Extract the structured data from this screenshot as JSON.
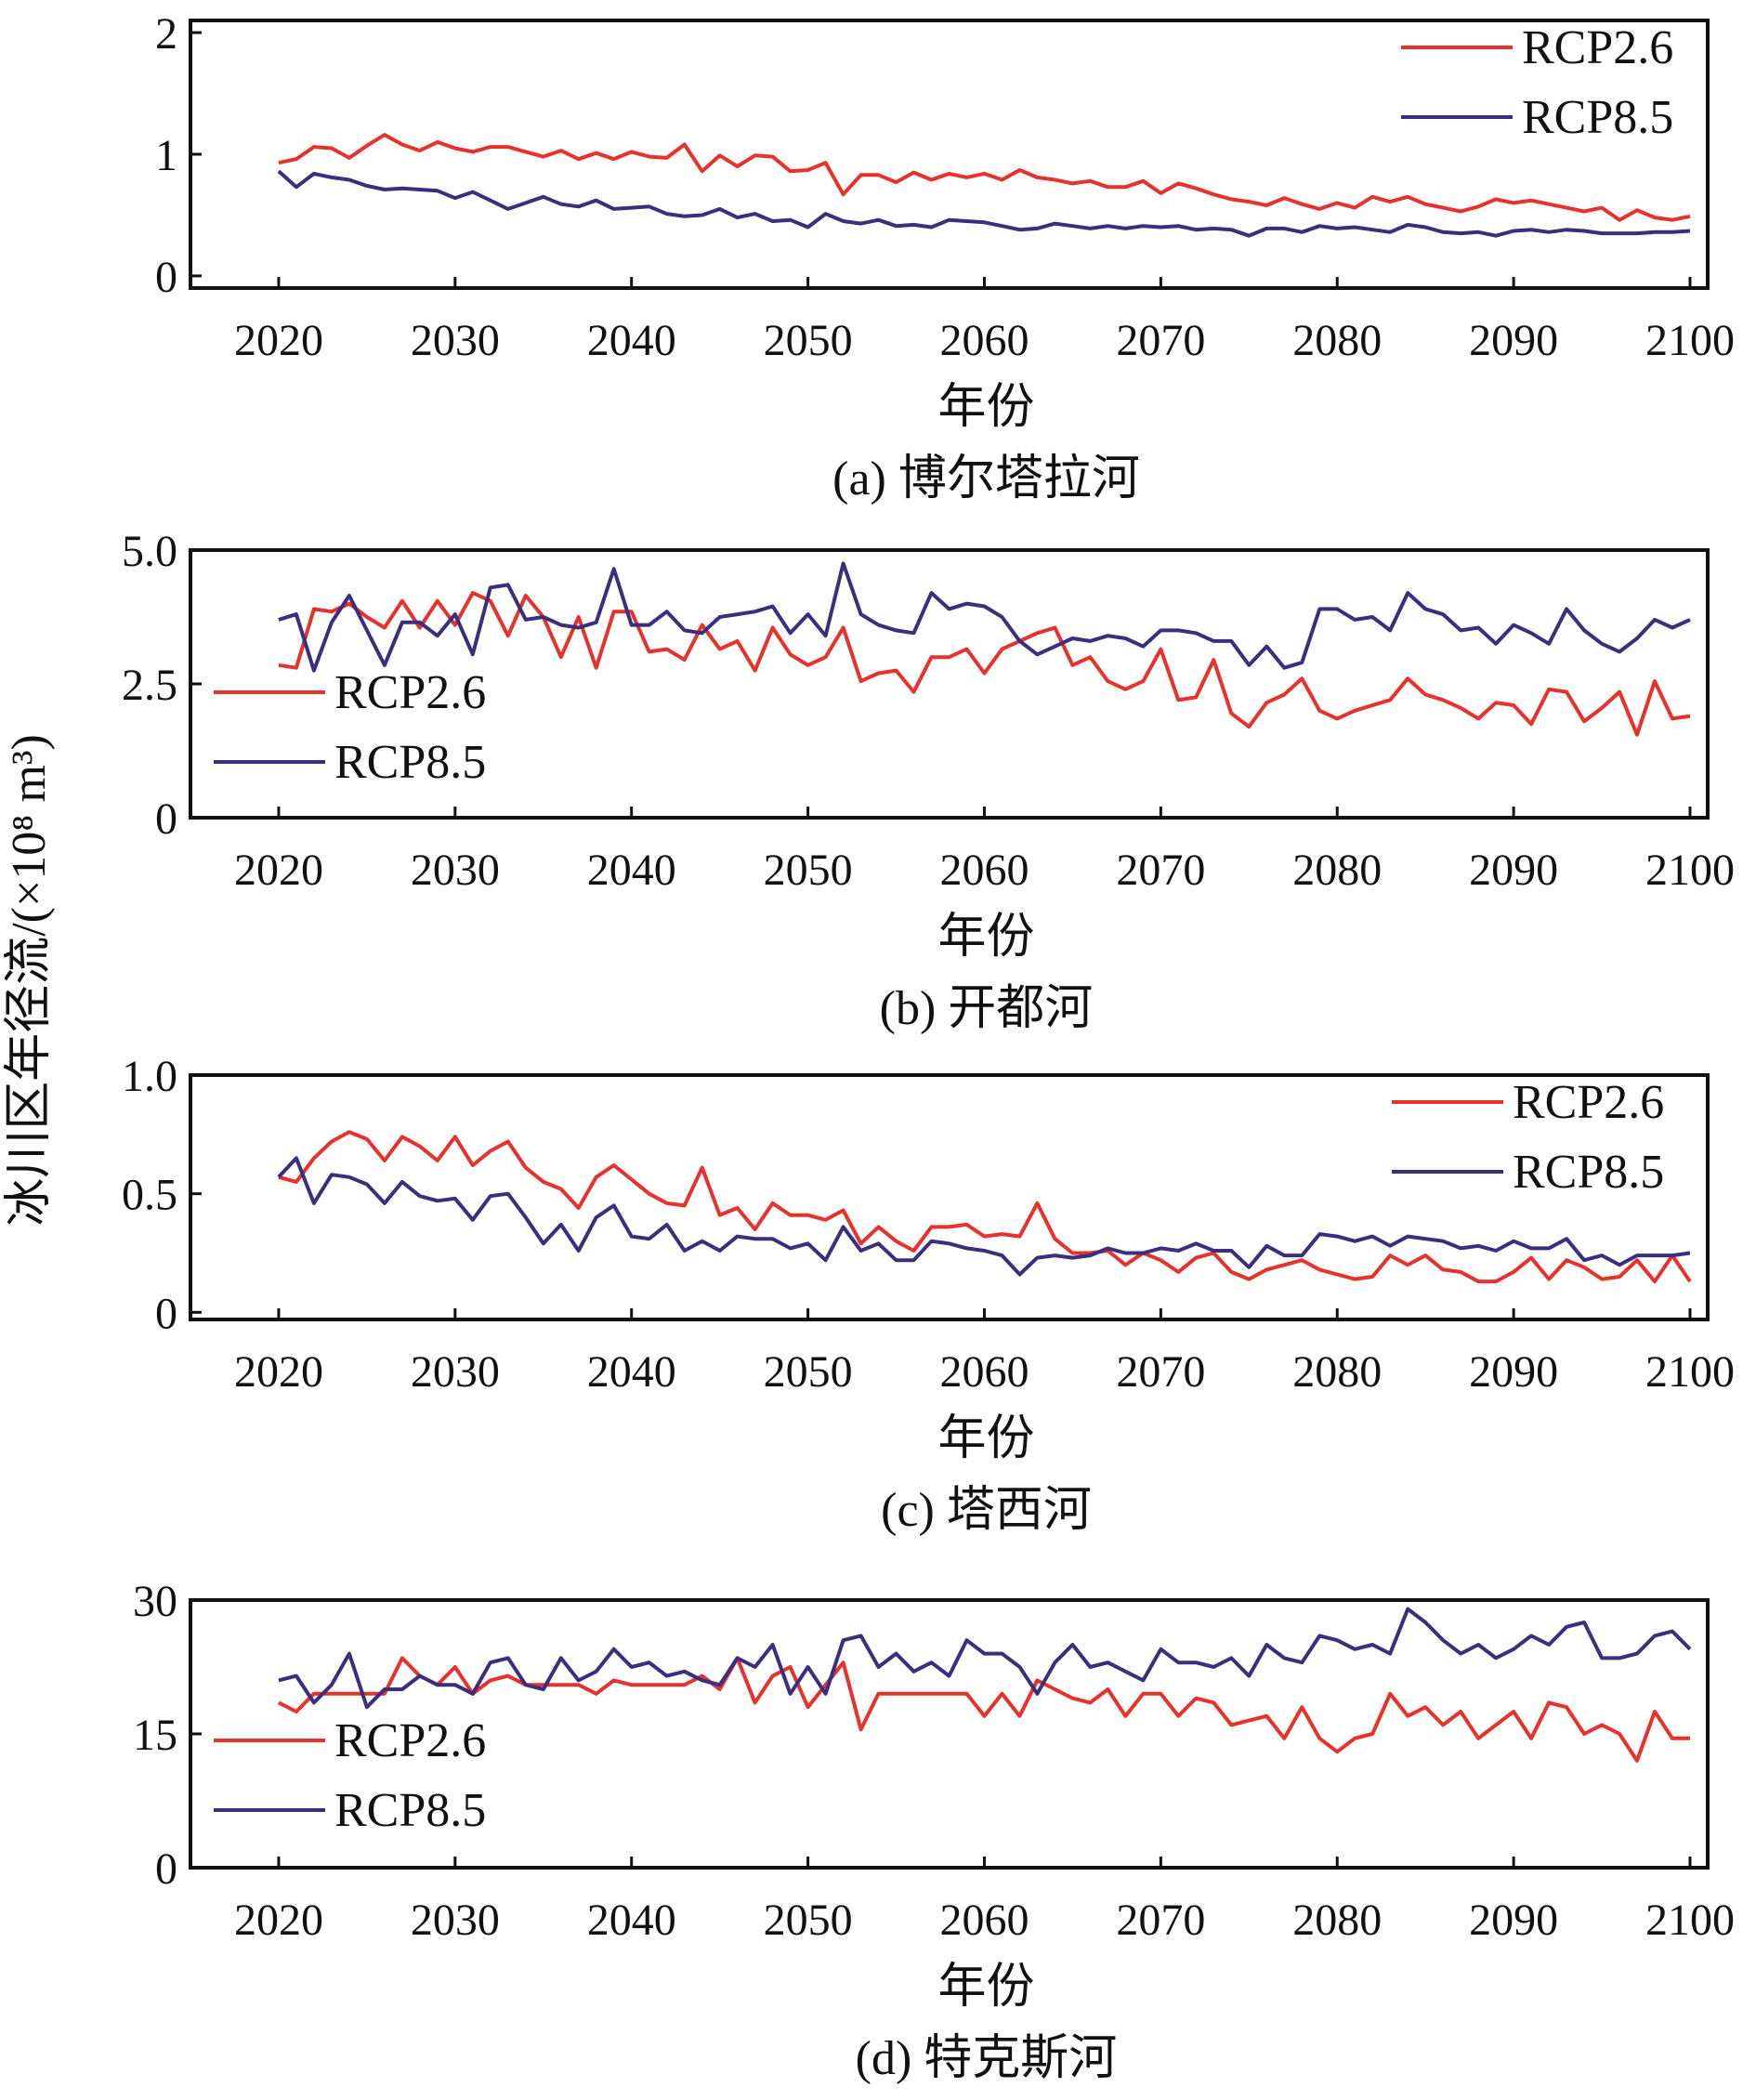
{
  "ylabel": "冰川区年径流/(×10⁸ m³)",
  "legend_names": [
    "RCP2.6",
    "RCP8.5"
  ],
  "colors": {
    "RCP2.6": "#e8312a",
    "RCP8.5": "#3a2f7e"
  },
  "chart_data": [
    {
      "type": "line",
      "title": "(a) 博尔塔拉河",
      "xlabel": "年份",
      "xlim": [
        2015,
        2101
      ],
      "ylim": [
        -0.1,
        2.1
      ],
      "xticks": [
        2020,
        2030,
        2040,
        2050,
        2060,
        2070,
        2080,
        2090,
        2100
      ],
      "yticks": [
        0,
        1,
        2
      ],
      "ytick_labels": [
        "0",
        "1",
        "2"
      ],
      "legend": "top-right",
      "x_start": 2020,
      "series": [
        {
          "name": "RCP2.6",
          "color": "#e8312a",
          "values": [
            0.93,
            0.96,
            1.06,
            1.05,
            0.97,
            1.07,
            1.16,
            1.08,
            1.03,
            1.1,
            1.05,
            1.02,
            1.06,
            1.06,
            1.02,
            0.98,
            1.03,
            0.96,
            1.01,
            0.96,
            1.02,
            0.98,
            0.97,
            1.08,
            0.86,
            0.99,
            0.9,
            0.99,
            0.98,
            0.86,
            0.87,
            0.93,
            0.67,
            0.83,
            0.83,
            0.77,
            0.85,
            0.79,
            0.84,
            0.81,
            0.84,
            0.79,
            0.87,
            0.81,
            0.79,
            0.76,
            0.78,
            0.73,
            0.73,
            0.78,
            0.68,
            0.76,
            0.72,
            0.67,
            0.63,
            0.61,
            0.58,
            0.64,
            0.59,
            0.55,
            0.6,
            0.56,
            0.65,
            0.61,
            0.65,
            0.59,
            0.56,
            0.53,
            0.57,
            0.63,
            0.6,
            0.62,
            0.59,
            0.56,
            0.53,
            0.56,
            0.46,
            0.54,
            0.48,
            0.46,
            0.49
          ]
        },
        {
          "name": "RCP8.5",
          "color": "#3a2f7e",
          "values": [
            0.86,
            0.73,
            0.84,
            0.81,
            0.79,
            0.74,
            0.71,
            0.72,
            0.71,
            0.7,
            0.64,
            0.69,
            0.62,
            0.55,
            0.6,
            0.65,
            0.59,
            0.57,
            0.62,
            0.55,
            0.56,
            0.57,
            0.51,
            0.49,
            0.5,
            0.55,
            0.48,
            0.51,
            0.45,
            0.46,
            0.4,
            0.51,
            0.45,
            0.43,
            0.46,
            0.41,
            0.42,
            0.4,
            0.46,
            0.45,
            0.44,
            0.41,
            0.38,
            0.39,
            0.43,
            0.41,
            0.39,
            0.41,
            0.39,
            0.41,
            0.4,
            0.41,
            0.38,
            0.39,
            0.38,
            0.33,
            0.39,
            0.39,
            0.36,
            0.41,
            0.39,
            0.4,
            0.38,
            0.36,
            0.42,
            0.4,
            0.36,
            0.35,
            0.36,
            0.33,
            0.37,
            0.38,
            0.36,
            0.38,
            0.37,
            0.35,
            0.35,
            0.35,
            0.36,
            0.36,
            0.37
          ]
        }
      ]
    },
    {
      "type": "line",
      "title": "(b) 开都河",
      "xlabel": "年份",
      "xlim": [
        2015,
        2101
      ],
      "ylim": [
        0,
        5.0
      ],
      "xticks": [
        2020,
        2030,
        2040,
        2050,
        2060,
        2070,
        2080,
        2090,
        2100
      ],
      "yticks": [
        0,
        2.5,
        5.0
      ],
      "ytick_labels": [
        "0",
        "2.5",
        "5.0"
      ],
      "legend": "bottom-left",
      "x_start": 2020,
      "series": [
        {
          "name": "RCP2.6",
          "color": "#e8312a",
          "values": [
            2.85,
            2.8,
            3.9,
            3.85,
            4.0,
            3.75,
            3.55,
            4.05,
            3.55,
            4.05,
            3.6,
            4.2,
            4.05,
            3.4,
            4.15,
            3.75,
            3.0,
            3.75,
            2.8,
            3.85,
            3.85,
            3.1,
            3.15,
            2.95,
            3.6,
            3.15,
            3.3,
            2.75,
            3.55,
            3.05,
            2.85,
            3.0,
            3.55,
            2.55,
            2.7,
            2.75,
            2.35,
            3.0,
            3.0,
            3.15,
            2.7,
            3.15,
            3.3,
            3.45,
            3.55,
            2.85,
            3.0,
            2.55,
            2.4,
            2.55,
            3.15,
            2.2,
            2.25,
            2.95,
            1.95,
            1.7,
            2.15,
            2.3,
            2.6,
            2.0,
            1.85,
            2.0,
            2.1,
            2.2,
            2.6,
            2.3,
            2.2,
            2.05,
            1.85,
            2.15,
            2.1,
            1.75,
            2.4,
            2.35,
            1.8,
            2.05,
            2.35,
            1.55,
            2.55,
            1.85,
            1.9
          ]
        },
        {
          "name": "RCP8.5",
          "color": "#3a2f7e",
          "values": [
            3.7,
            3.8,
            2.75,
            3.65,
            4.15,
            3.5,
            2.85,
            3.65,
            3.65,
            3.4,
            3.8,
            3.05,
            4.3,
            4.35,
            3.7,
            3.75,
            3.6,
            3.55,
            3.65,
            4.65,
            3.6,
            3.6,
            3.85,
            3.5,
            3.45,
            3.75,
            3.8,
            3.85,
            3.95,
            3.45,
            3.8,
            3.4,
            4.75,
            3.8,
            3.6,
            3.5,
            3.45,
            4.2,
            3.9,
            4.0,
            3.95,
            3.75,
            3.3,
            3.05,
            3.2,
            3.35,
            3.3,
            3.4,
            3.35,
            3.2,
            3.5,
            3.5,
            3.45,
            3.3,
            3.3,
            2.85,
            3.2,
            2.8,
            2.9,
            3.9,
            3.9,
            3.7,
            3.75,
            3.5,
            4.2,
            3.9,
            3.8,
            3.5,
            3.55,
            3.25,
            3.6,
            3.45,
            3.25,
            3.9,
            3.5,
            3.25,
            3.1,
            3.35,
            3.7,
            3.55,
            3.7
          ]
        }
      ]
    },
    {
      "type": "line",
      "title": "(c) 塔西河",
      "xlabel": "年份",
      "xlim": [
        2015,
        2101
      ],
      "ylim": [
        -0.03,
        1.0
      ],
      "xticks": [
        2020,
        2030,
        2040,
        2050,
        2060,
        2070,
        2080,
        2090,
        2100
      ],
      "yticks": [
        0,
        0.5,
        1.0
      ],
      "ytick_labels": [
        "0",
        "0.5",
        "1.0"
      ],
      "legend": "top-right",
      "x_start": 2020,
      "series": [
        {
          "name": "RCP2.6",
          "color": "#e8312a",
          "values": [
            0.57,
            0.55,
            0.65,
            0.72,
            0.76,
            0.73,
            0.64,
            0.74,
            0.7,
            0.64,
            0.74,
            0.62,
            0.68,
            0.72,
            0.61,
            0.55,
            0.52,
            0.44,
            0.57,
            0.62,
            0.56,
            0.5,
            0.46,
            0.45,
            0.61,
            0.41,
            0.44,
            0.35,
            0.46,
            0.41,
            0.41,
            0.39,
            0.43,
            0.29,
            0.36,
            0.3,
            0.26,
            0.36,
            0.36,
            0.37,
            0.32,
            0.33,
            0.32,
            0.46,
            0.31,
            0.25,
            0.25,
            0.26,
            0.2,
            0.25,
            0.22,
            0.17,
            0.23,
            0.25,
            0.17,
            0.14,
            0.18,
            0.2,
            0.22,
            0.18,
            0.16,
            0.14,
            0.15,
            0.24,
            0.2,
            0.24,
            0.18,
            0.17,
            0.13,
            0.13,
            0.17,
            0.23,
            0.14,
            0.22,
            0.19,
            0.14,
            0.15,
            0.22,
            0.13,
            0.24,
            0.13
          ]
        },
        {
          "name": "RCP8.5",
          "color": "#3a2f7e",
          "values": [
            0.57,
            0.65,
            0.46,
            0.58,
            0.57,
            0.54,
            0.46,
            0.55,
            0.49,
            0.47,
            0.48,
            0.39,
            0.49,
            0.5,
            0.4,
            0.29,
            0.37,
            0.26,
            0.4,
            0.45,
            0.32,
            0.31,
            0.37,
            0.26,
            0.3,
            0.26,
            0.32,
            0.31,
            0.31,
            0.27,
            0.29,
            0.22,
            0.36,
            0.26,
            0.29,
            0.22,
            0.22,
            0.3,
            0.29,
            0.27,
            0.26,
            0.24,
            0.16,
            0.23,
            0.24,
            0.23,
            0.24,
            0.27,
            0.25,
            0.25,
            0.27,
            0.26,
            0.29,
            0.26,
            0.26,
            0.19,
            0.28,
            0.24,
            0.24,
            0.33,
            0.32,
            0.3,
            0.32,
            0.28,
            0.32,
            0.31,
            0.3,
            0.27,
            0.28,
            0.26,
            0.3,
            0.27,
            0.27,
            0.31,
            0.22,
            0.24,
            0.2,
            0.24,
            0.24,
            0.24,
            0.25
          ]
        }
      ]
    },
    {
      "type": "line",
      "title": "(d) 特克斯河",
      "xlabel": "年份",
      "xlim": [
        2015,
        2101
      ],
      "ylim": [
        0,
        30
      ],
      "xticks": [
        2020,
        2030,
        2040,
        2050,
        2060,
        2070,
        2080,
        2090,
        2100
      ],
      "yticks": [
        0,
        15,
        30
      ],
      "ytick_labels": [
        "0",
        "15",
        "30"
      ],
      "legend": "bottom-left",
      "x_start": 2020,
      "series": [
        {
          "name": "RCP2.6",
          "color": "#e8312a",
          "values": [
            18.5,
            17.5,
            19.5,
            19.5,
            19.5,
            19.5,
            19.5,
            23.5,
            21.5,
            20.5,
            22.5,
            19.5,
            21.0,
            21.5,
            20.5,
            20.5,
            20.5,
            20.5,
            19.5,
            21.0,
            20.5,
            20.5,
            20.5,
            20.5,
            21.5,
            20.0,
            23.5,
            18.5,
            21.5,
            22.5,
            18.0,
            20.5,
            23.0,
            15.5,
            19.5,
            19.5,
            19.5,
            19.5,
            19.5,
            19.5,
            17.0,
            19.5,
            17.0,
            21.0,
            20.0,
            19.0,
            18.5,
            20.0,
            17.0,
            19.5,
            19.5,
            17.0,
            19.0,
            18.5,
            16.0,
            16.5,
            17.0,
            14.5,
            18.0,
            14.5,
            13.0,
            14.5,
            15.0,
            19.5,
            17.0,
            18.0,
            16.0,
            17.5,
            14.5,
            16.0,
            17.5,
            14.5,
            18.5,
            18.0,
            15.0,
            16.0,
            15.0,
            12.0,
            17.5,
            14.5,
            14.5
          ]
        },
        {
          "name": "RCP8.5",
          "color": "#3a2f7e",
          "values": [
            21.0,
            21.5,
            18.5,
            20.5,
            24.0,
            18.0,
            20.0,
            20.0,
            21.5,
            20.5,
            20.5,
            19.5,
            23.0,
            23.5,
            20.5,
            20.0,
            23.5,
            21.0,
            22.0,
            24.5,
            22.5,
            23.0,
            21.5,
            22.0,
            21.0,
            20.5,
            23.5,
            22.5,
            25.0,
            19.5,
            22.5,
            19.5,
            25.5,
            26.0,
            22.5,
            24.0,
            22.0,
            23.0,
            21.5,
            25.5,
            24.0,
            24.0,
            22.5,
            19.5,
            23.0,
            25.0,
            22.5,
            23.0,
            22.0,
            21.0,
            24.5,
            23.0,
            23.0,
            22.5,
            23.5,
            21.5,
            25.0,
            23.5,
            23.0,
            26.0,
            25.5,
            24.5,
            25.0,
            24.0,
            29.0,
            27.5,
            25.5,
            24.0,
            25.0,
            23.5,
            24.5,
            26.0,
            25.0,
            27.0,
            27.5,
            23.5,
            23.5,
            24.0,
            26.0,
            26.5,
            24.5
          ]
        }
      ]
    }
  ]
}
